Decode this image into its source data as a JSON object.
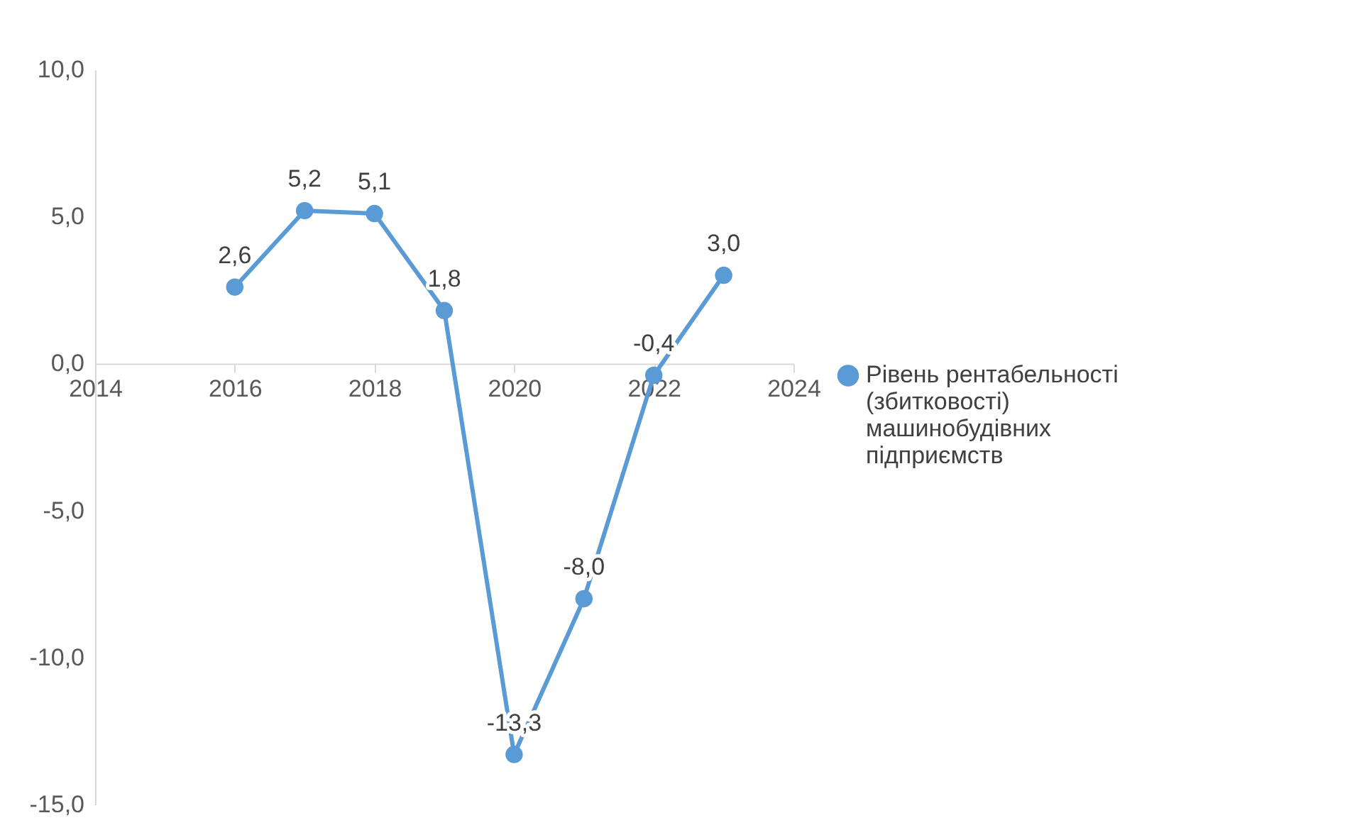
{
  "chart_data": {
    "type": "line",
    "x": [
      2016,
      2017,
      2018,
      2019,
      2020,
      2021,
      2022,
      2023
    ],
    "series": [
      {
        "name": "Рівень рентабельності (збитковості) машинобудівних підприємств",
        "color": "#5b9bd5",
        "values": [
          2.6,
          5.2,
          5.1,
          1.8,
          -13.3,
          -8.0,
          -0.4,
          3.0
        ],
        "value_labels": [
          "2,6",
          "5,2",
          "5,1",
          "1,8",
          "-13,3",
          "-8,0",
          "-0,4",
          "3,0"
        ]
      }
    ],
    "xlim": [
      2014,
      2024
    ],
    "xticks": [
      2014,
      2016,
      2018,
      2020,
      2022,
      2024
    ],
    "ylim": [
      -15,
      10
    ],
    "yticks": [
      {
        "value": -15,
        "label": "-15,0"
      },
      {
        "value": -10,
        "label": "-10,0"
      },
      {
        "value": -5,
        "label": "-5,0"
      },
      {
        "value": 0,
        "label": "0,0"
      },
      {
        "value": 5,
        "label": "5,0"
      },
      {
        "value": 10,
        "label": "10,0"
      }
    ],
    "grid": false,
    "legend": "right",
    "marker": "circle",
    "line_style": "solid"
  }
}
